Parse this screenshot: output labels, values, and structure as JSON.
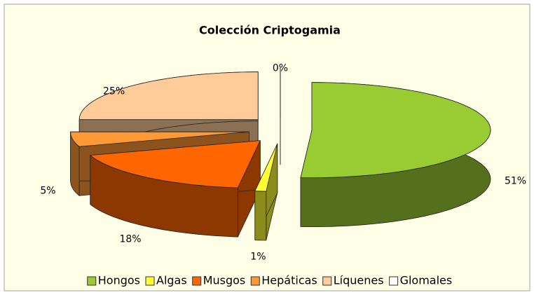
{
  "chart_data": {
    "type": "pie3d",
    "title": "Colección Criptogamia",
    "categories": [
      "Hongos",
      "Algas",
      "Musgos",
      "Hepáticas",
      "Líquenes",
      "Glomales"
    ],
    "values": [
      51,
      1,
      18,
      5,
      25,
      0
    ],
    "value_labels": [
      "51%",
      "1%",
      "18%",
      "5%",
      "25%",
      "0%"
    ],
    "colors": [
      "#99cc33",
      "#ffff33",
      "#ff6600",
      "#ff9933",
      "#ffcc99",
      "#ffffff"
    ],
    "legend": "bottom"
  }
}
